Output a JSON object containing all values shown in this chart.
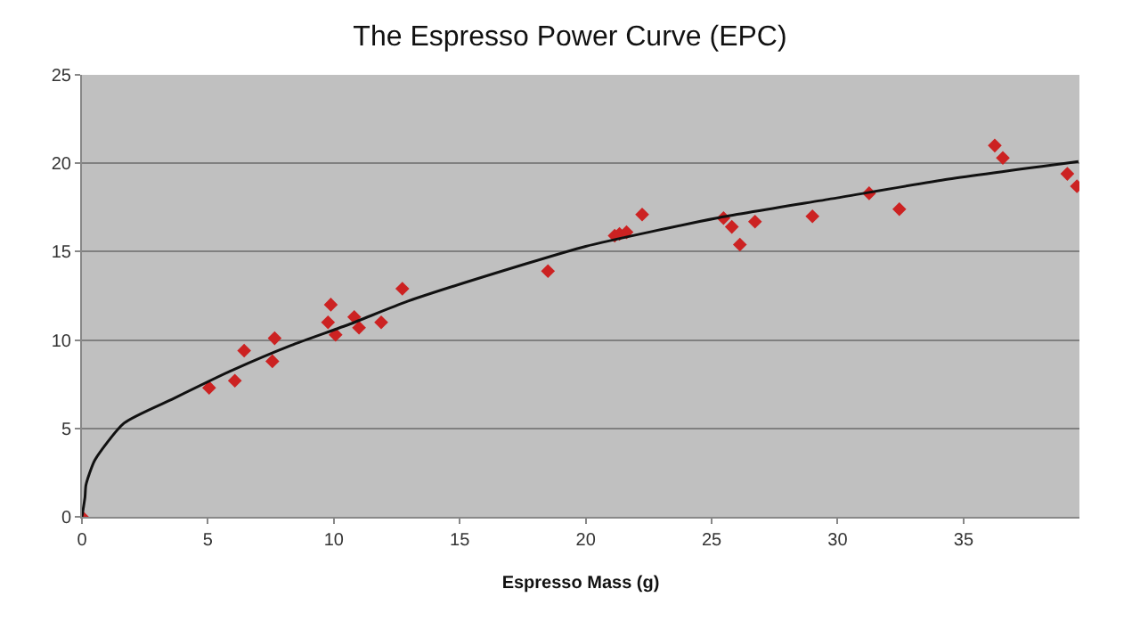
{
  "chart_data": {
    "type": "scatter",
    "title": "The Espresso Power Curve (EPC)",
    "xlabel": "Espresso Mass (g)",
    "xlim": [
      0,
      39.6
    ],
    "xticks": [
      0,
      5,
      10,
      15,
      20,
      25,
      30,
      35
    ],
    "ylim": [
      0,
      25
    ],
    "yticks": [
      0,
      5,
      10,
      15,
      20,
      25
    ],
    "grid": "y",
    "line_style": "solid",
    "series": [
      {
        "marker": "diamond",
        "color": "#cc2222",
        "x": [
          0,
          5.05,
          6.07,
          6.44,
          7.56,
          7.65,
          9.77,
          9.88,
          10.07,
          10.81,
          11.0,
          11.88,
          12.72,
          18.5,
          21.15,
          21.34,
          21.62,
          22.24,
          25.47,
          25.8,
          26.12,
          26.72,
          29.0,
          31.25,
          32.45,
          36.24,
          36.56,
          39.12,
          39.5
        ],
        "values": [
          0,
          7.3,
          7.7,
          9.4,
          8.8,
          10.1,
          11.0,
          12.0,
          10.3,
          11.3,
          10.7,
          11.0,
          12.9,
          13.9,
          15.9,
          16.0,
          16.1,
          17.1,
          16.9,
          16.4,
          15.4,
          16.7,
          17.0,
          18.3,
          17.4,
          21.0,
          20.3,
          19.4,
          18.7
        ]
      },
      {
        "type": "line",
        "marker": "none",
        "color": "#111111",
        "x": [
          0,
          0.12,
          0.16,
          0.51,
          1.67,
          3.65,
          5.98,
          8.3,
          10.63,
          12.95,
          17.6,
          20,
          25.2,
          29.8,
          34.4,
          39.56
        ],
        "values": [
          0,
          1.1,
          1.8,
          3.2,
          5.3,
          6.7,
          8.3,
          9.7,
          10.9,
          12.2,
          14.3,
          15.3,
          16.9,
          18.0,
          19.1,
          20.1
        ]
      }
    ]
  }
}
